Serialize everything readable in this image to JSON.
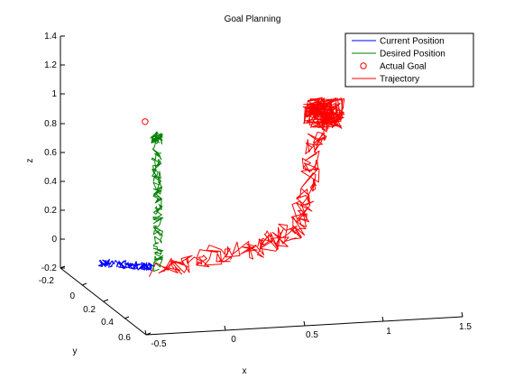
{
  "colors": {
    "current": "#0000ff",
    "desired": "#008000",
    "goal": "#ff0000",
    "trajectory": "#ff0000",
    "axis": "#000000"
  },
  "chart_data": {
    "type": "line",
    "projection": "3d",
    "title": "Goal Planning",
    "xlabel": "x",
    "ylabel": "y",
    "zlabel": "z",
    "xlim": [
      -0.5,
      1.5
    ],
    "ylim": [
      -0.2,
      0.6
    ],
    "zlim": [
      -0.2,
      1.4
    ],
    "x_ticks": [
      "-0.5",
      "0",
      "0.5",
      "1",
      "1.5"
    ],
    "y_ticks": [
      "-0.2",
      "0",
      "0.2",
      "0.4",
      "0.6"
    ],
    "z_ticks": [
      "-0.2",
      "0",
      "0.2",
      "0.4",
      "0.6",
      "0.8",
      "1",
      "1.2",
      "1.4"
    ],
    "legend_position": "top-right",
    "legend": [
      {
        "label": "Current Position",
        "marker": "line",
        "color": "#0000ff"
      },
      {
        "label": "Desired Position",
        "marker": "line",
        "color": "#008000"
      },
      {
        "label": "Actual Goal",
        "marker": "circle",
        "color": "#ff0000"
      },
      {
        "label": "Trajectory",
        "marker": "line",
        "color": "#ff0000"
      }
    ],
    "actual_goal": {
      "x": -0.1,
      "y": 0.0,
      "z": 0.9
    },
    "series": [
      {
        "name": "Current Position",
        "points": [
          [
            -0.47,
            0.12,
            0.02
          ],
          [
            -0.4,
            0.12,
            0.01
          ],
          [
            -0.3,
            0.13,
            0.0
          ],
          [
            -0.22,
            0.14,
            -0.01
          ],
          [
            -0.16,
            0.15,
            -0.01
          ]
        ]
      },
      {
        "name": "Desired Position",
        "points": [
          [
            -0.12,
            0.15,
            -0.02
          ],
          [
            -0.11,
            0.14,
            0.15
          ],
          [
            -0.1,
            0.12,
            0.33
          ],
          [
            -0.09,
            0.1,
            0.5
          ],
          [
            -0.08,
            0.08,
            0.65
          ],
          [
            -0.07,
            0.06,
            0.82
          ]
        ]
      },
      {
        "name": "Trajectory",
        "points": [
          [
            -0.12,
            0.16,
            -0.02
          ],
          [
            0.05,
            0.16,
            0.0
          ],
          [
            0.25,
            0.16,
            0.05
          ],
          [
            0.45,
            0.16,
            0.08
          ],
          [
            0.6,
            0.16,
            0.12
          ],
          [
            0.72,
            0.16,
            0.18
          ],
          [
            0.78,
            0.16,
            0.3
          ],
          [
            0.82,
            0.16,
            0.5
          ],
          [
            0.86,
            0.16,
            0.72
          ],
          [
            0.9,
            0.16,
            0.9
          ],
          [
            0.92,
            0.16,
            1.02
          ]
        ]
      }
    ]
  }
}
